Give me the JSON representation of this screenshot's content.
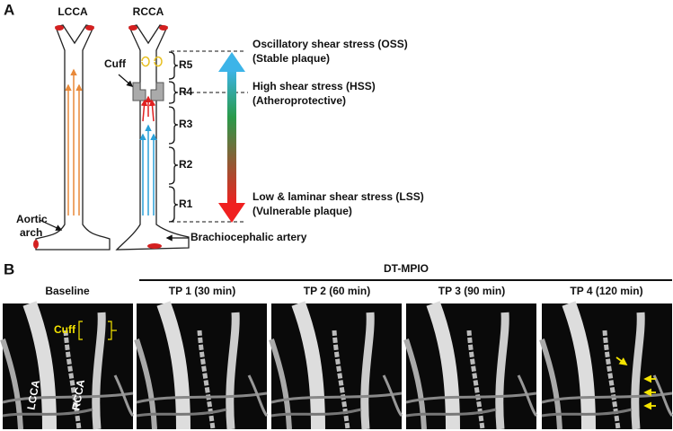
{
  "panel_a": {
    "label": "A",
    "vessels": [
      "LCCA",
      "RCCA"
    ],
    "cuff": "Cuff",
    "regions": [
      "R5",
      "R4",
      "R3",
      "R2",
      "R1"
    ],
    "zones": [
      {
        "title": "Oscillatory shear stress (OSS)",
        "subtitle": "(Stable plaque)"
      },
      {
        "title": "High shear stress (HSS)",
        "subtitle": "(Atheroprotective)"
      },
      {
        "title": "Low & laminar shear stress (LSS)",
        "subtitle": "(Vulnerable plaque)"
      }
    ],
    "aortic_arch": [
      "Aortic",
      "arch"
    ],
    "brachiocephalic": "Brachiocephalic artery"
  },
  "panel_b": {
    "label": "B",
    "group": "DT-MPIO",
    "panels": [
      "Baseline",
      "TP 1 (30 min)",
      "TP 2 (60 min)",
      "TP 3 (90 min)",
      "TP 4 (120 min)"
    ],
    "image_labels": {
      "cuff": "Cuff",
      "lcca": "LCCA",
      "rcca": "RCCA"
    }
  }
}
